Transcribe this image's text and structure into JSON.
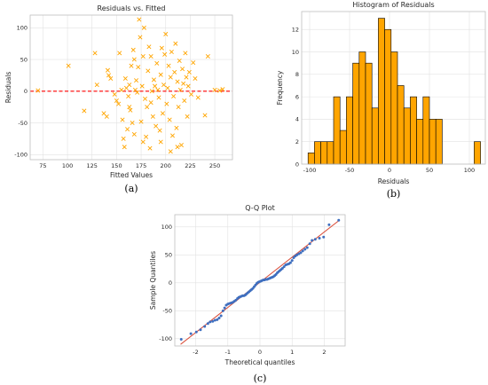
{
  "chart_data": [
    {
      "id": "a",
      "panel_label": "(a)",
      "type": "scatter",
      "title": "Residuals vs. Fitted",
      "xlabel": "Fitted Values",
      "ylabel": "Residuals",
      "xlim": [
        62,
        268
      ],
      "ylim": [
        -108,
        120
      ],
      "xticks": [
        75,
        100,
        125,
        150,
        175,
        200,
        225,
        250
      ],
      "yticks": [
        -100,
        -50,
        0,
        50,
        100
      ],
      "grid": true,
      "marker": "x",
      "marker_color": "#ffa500",
      "reference_line": {
        "y": 0,
        "color": "#ff0000",
        "style": "dashed"
      },
      "points": [
        [
          70,
          1
        ],
        [
          101,
          40
        ],
        [
          117,
          -31
        ],
        [
          128,
          60
        ],
        [
          130,
          10
        ],
        [
          137,
          -35
        ],
        [
          140,
          -40
        ],
        [
          141,
          33
        ],
        [
          142,
          25
        ],
        [
          144,
          20
        ],
        [
          148,
          -5
        ],
        [
          150,
          -15
        ],
        [
          152,
          -20
        ],
        [
          153,
          60
        ],
        [
          155,
          2
        ],
        [
          156,
          -45
        ],
        [
          157,
          -75
        ],
        [
          158,
          -88
        ],
        [
          159,
          20
        ],
        [
          160,
          5
        ],
        [
          161,
          -60
        ],
        [
          162,
          -8
        ],
        [
          163,
          10
        ],
        [
          164,
          -30
        ],
        [
          165,
          40
        ],
        [
          166,
          -50
        ],
        [
          167,
          65
        ],
        [
          168,
          -68
        ],
        [
          169,
          2
        ],
        [
          170,
          17
        ],
        [
          171,
          -2
        ],
        [
          172,
          38
        ],
        [
          173,
          113
        ],
        [
          174,
          85
        ],
        [
          175,
          -48
        ],
        [
          176,
          8
        ],
        [
          177,
          55
        ],
        [
          178,
          100
        ],
        [
          179,
          -12
        ],
        [
          180,
          -72
        ],
        [
          181,
          -25
        ],
        [
          182,
          32
        ],
        [
          183,
          70
        ],
        [
          184,
          -90
        ],
        [
          185,
          55
        ],
        [
          186,
          0
        ],
        [
          187,
          -40
        ],
        [
          188,
          18
        ],
        [
          189,
          8
        ],
        [
          190,
          -55
        ],
        [
          191,
          44
        ],
        [
          192,
          2
        ],
        [
          193,
          -10
        ],
        [
          194,
          -62
        ],
        [
          195,
          26
        ],
        [
          196,
          68
        ],
        [
          197,
          -35
        ],
        [
          198,
          10
        ],
        [
          199,
          58
        ],
        [
          200,
          90
        ],
        [
          201,
          -20
        ],
        [
          202,
          5
        ],
        [
          203,
          40
        ],
        [
          204,
          -45
        ],
        [
          205,
          22
        ],
        [
          206,
          62
        ],
        [
          207,
          -70
        ],
        [
          208,
          -8
        ],
        [
          209,
          30
        ],
        [
          210,
          75
        ],
        [
          211,
          -58
        ],
        [
          212,
          15
        ],
        [
          213,
          -25
        ],
        [
          214,
          48
        ],
        [
          215,
          2
        ],
        [
          216,
          -85
        ],
        [
          217,
          35
        ],
        [
          218,
          12
        ],
        [
          219,
          -15
        ],
        [
          220,
          60
        ],
        [
          221,
          22
        ],
        [
          222,
          -40
        ],
        [
          223,
          8
        ],
        [
          224,
          30
        ],
        [
          226,
          -5
        ],
        [
          228,
          45
        ],
        [
          230,
          20
        ],
        [
          233,
          -10
        ],
        [
          240,
          -38
        ],
        [
          243,
          55
        ],
        [
          250,
          2
        ],
        [
          255,
          1
        ],
        [
          258,
          3
        ],
        [
          163,
          -25
        ],
        [
          168,
          50
        ],
        [
          177,
          -80
        ],
        [
          185,
          -18
        ],
        [
          195,
          -80
        ],
        [
          205,
          -95
        ],
        [
          212,
          -88
        ]
      ]
    },
    {
      "id": "b",
      "panel_label": "(b)",
      "type": "bar",
      "title": "Histogram of Residuals",
      "xlabel": "Residuals",
      "ylabel": "Frequency",
      "xlim": [
        -110,
        120
      ],
      "ylim": [
        0,
        13.6
      ],
      "xticks": [
        -100,
        -50,
        0,
        50,
        100
      ],
      "yticks": [
        0,
        2,
        4,
        6,
        8,
        10,
        12
      ],
      "grid": true,
      "bar_color": "#ffa500",
      "edge_color": "#000000",
      "bin_edges": [
        -102,
        -94,
        -86,
        -78,
        -70,
        -62,
        -54,
        -46,
        -38,
        -30,
        -22,
        -14,
        -6,
        2,
        10,
        18,
        26,
        34,
        42,
        50,
        58,
        66,
        74,
        82,
        90,
        98,
        106,
        114
      ],
      "counts": [
        1,
        2,
        2,
        2,
        6,
        3,
        6,
        9,
        10,
        9,
        5,
        13,
        12,
        10,
        7,
        5,
        6,
        4,
        6,
        4,
        4,
        0,
        0,
        0,
        0,
        0,
        2
      ]
    },
    {
      "id": "c",
      "panel_label": "(c)",
      "type": "scatter",
      "title": "Q-Q Plot",
      "xlabel": "Theoretical quantiles",
      "ylabel": "Sample Quantiles",
      "xlim": [
        -2.65,
        2.65
      ],
      "ylim": [
        -113,
        122
      ],
      "xticks": [
        -2,
        -1,
        0,
        1,
        2
      ],
      "yticks": [
        -100,
        -50,
        0,
        50,
        100
      ],
      "grid": true,
      "marker_color": "#3f6fbf",
      "reference_line": {
        "intercept": 1,
        "slope": 45,
        "color": "#d94a35",
        "style": "solid"
      },
      "points": [
        [
          -2.45,
          -101
        ],
        [
          -2.15,
          -91
        ],
        [
          -1.98,
          -88
        ],
        [
          -1.85,
          -84
        ],
        [
          -1.72,
          -78
        ],
        [
          -1.62,
          -73
        ],
        [
          -1.55,
          -70
        ],
        [
          -1.47,
          -69
        ],
        [
          -1.4,
          -67
        ],
        [
          -1.33,
          -66
        ],
        [
          -1.27,
          -63
        ],
        [
          -1.21,
          -59
        ],
        [
          -1.15,
          -50
        ],
        [
          -1.1,
          -45
        ],
        [
          -1.05,
          -40
        ],
        [
          -1.0,
          -38
        ],
        [
          -0.95,
          -37
        ],
        [
          -0.9,
          -36
        ],
        [
          -0.85,
          -35
        ],
        [
          -0.8,
          -33
        ],
        [
          -0.75,
          -31
        ],
        [
          -0.7,
          -28
        ],
        [
          -0.66,
          -26
        ],
        [
          -0.62,
          -25
        ],
        [
          -0.58,
          -24
        ],
        [
          -0.54,
          -23
        ],
        [
          -0.5,
          -23
        ],
        [
          -0.46,
          -22
        ],
        [
          -0.42,
          -20
        ],
        [
          -0.38,
          -18
        ],
        [
          -0.34,
          -16
        ],
        [
          -0.3,
          -14
        ],
        [
          -0.26,
          -12
        ],
        [
          -0.22,
          -10
        ],
        [
          -0.18,
          -7
        ],
        [
          -0.14,
          -4
        ],
        [
          -0.1,
          -1
        ],
        [
          -0.06,
          1
        ],
        [
          -0.02,
          2
        ],
        [
          0.02,
          3
        ],
        [
          0.06,
          4
        ],
        [
          0.1,
          5
        ],
        [
          0.14,
          5
        ],
        [
          0.18,
          6
        ],
        [
          0.22,
          6
        ],
        [
          0.26,
          7
        ],
        [
          0.3,
          8
        ],
        [
          0.34,
          9
        ],
        [
          0.38,
          10
        ],
        [
          0.42,
          11
        ],
        [
          0.46,
          13
        ],
        [
          0.5,
          15
        ],
        [
          0.54,
          18
        ],
        [
          0.58,
          20
        ],
        [
          0.62,
          22
        ],
        [
          0.66,
          24
        ],
        [
          0.7,
          26
        ],
        [
          0.75,
          29
        ],
        [
          0.8,
          32
        ],
        [
          0.85,
          33
        ],
        [
          0.9,
          34
        ],
        [
          0.95,
          36
        ],
        [
          1.0,
          40
        ],
        [
          1.05,
          45
        ],
        [
          1.1,
          48
        ],
        [
          1.15,
          50
        ],
        [
          1.21,
          52
        ],
        [
          1.27,
          54
        ],
        [
          1.33,
          57
        ],
        [
          1.4,
          60
        ],
        [
          1.47,
          63
        ],
        [
          1.55,
          70
        ],
        [
          1.62,
          76
        ],
        [
          1.72,
          78
        ],
        [
          1.85,
          80
        ],
        [
          1.98,
          82
        ],
        [
          2.15,
          104
        ],
        [
          2.45,
          112
        ]
      ]
    }
  ]
}
